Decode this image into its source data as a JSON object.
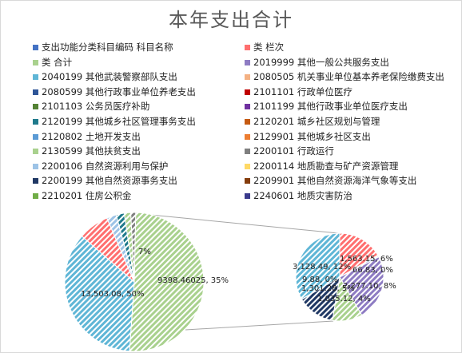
{
  "title": "本年支出合计",
  "colors": {
    "item": "#4472c4",
    "seq": "#ff6f6f",
    "total": "#a9d18e",
    "c2019999": "#8e7cc3",
    "c2040199": "#5fb6d6",
    "c2080505": "#f4b183",
    "c2080599": "#2e5597",
    "c2101101": "#c00000",
    "c2101103": "#548235",
    "c2101199": "#7030a0",
    "c2120199": "#1f7a8c",
    "c2120201": "#c55a11",
    "c2120802": "#5b9bd5",
    "c2129901": "#ed7d31",
    "c2130599": "#a9d18e",
    "c2200101": "#7f7f7f",
    "c2200106": "#9dc3e6",
    "c2200114": "#ffd966",
    "c2200199": "#203864",
    "c2209901": "#843c0c",
    "c2210201": "#70ad47",
    "c2240601": "#3a3a8c"
  },
  "legend": [
    {
      "label": "支出功能分类科目编码 科目名称",
      "color_key": "item"
    },
    {
      "label": "类 栏次",
      "color_key": "seq"
    },
    {
      "label": "类 合计",
      "color_key": "total"
    },
    {
      "label": "2019999 其他一般公共服务支出",
      "color_key": "c2019999"
    },
    {
      "label": "2040199 其他武装警察部队支出",
      "color_key": "c2040199"
    },
    {
      "label": "2080505 机关事业单位基本养老保险缴费支出",
      "color_key": "c2080505"
    },
    {
      "label": "2080599 其他行政事业单位养老支出",
      "color_key": "c2080599"
    },
    {
      "label": "2101101 行政单位医疗",
      "color_key": "c2101101"
    },
    {
      "label": "2101103 公务员医疗补助",
      "color_key": "c2101103"
    },
    {
      "label": "2101199 其他行政事业单位医疗支出",
      "color_key": "c2101199"
    },
    {
      "label": "2120199 其他城乡社区管理事务支出",
      "color_key": "c2120199"
    },
    {
      "label": "2120201 城乡社区规划与管理",
      "color_key": "c2120201"
    },
    {
      "label": "2120802 土地开发支出",
      "color_key": "c2120802"
    },
    {
      "label": "2129901 其他城乡社区支出",
      "color_key": "c2129901"
    },
    {
      "label": "2130599 其他扶贫支出",
      "color_key": "c2130599"
    },
    {
      "label": "2200101 行政运行",
      "color_key": "c2200101"
    },
    {
      "label": "2200106 自然资源利用与保护",
      "color_key": "c2200106"
    },
    {
      "label": "2200114 地质勘查与矿产资源管理",
      "color_key": "c2200114"
    },
    {
      "label": "2200199 其他自然资源事务支出",
      "color_key": "c2200199"
    },
    {
      "label": "2209901 其他自然资源海洋气象等支出",
      "color_key": "c2209901"
    },
    {
      "label": "2210201 住房公积金",
      "color_key": "c2210201"
    },
    {
      "label": "2240601 地质灾害防治",
      "color_key": "c2240601"
    }
  ],
  "chart_data": {
    "type": "pie",
    "subtype": "pie-of-pie",
    "title": "本年支出合计",
    "main_pie": [
      {
        "label": "13,503.08, 50%",
        "value": 13503.08,
        "percent": 50,
        "color_key": "total",
        "hatch": true
      },
      {
        "label": "9398.46025, 35%",
        "value": 9398.46025,
        "percent": 35,
        "color_key": "c2040199",
        "hatch": true
      },
      {
        "label": "7%",
        "value": 1890,
        "percent": 7,
        "color_key": "seq",
        "hatch": true
      },
      {
        "label": "",
        "value": 600,
        "percent": 2,
        "color_key": "c2200106",
        "hatch": true
      },
      {
        "label": "",
        "value": 500,
        "percent": 2,
        "color_key": "c2120199",
        "hatch": true
      },
      {
        "label": "",
        "value": 400,
        "percent": 2,
        "color_key": "c2130599",
        "hatch": true
      },
      {
        "label": "",
        "value": 300,
        "percent": 1,
        "color_key": "c2200101",
        "hatch": true
      }
    ],
    "secondary_pie": [
      {
        "label": "1,563.15, 6%",
        "value": 1563.15,
        "color_key": "seq",
        "hatch": true
      },
      {
        "label": "66.83, 0%",
        "value": 66.83,
        "color_key": "c2200106",
        "hatch": true
      },
      {
        "label": "2,277.10, 8%",
        "value": 2277.1,
        "color_key": "c2019999",
        "hatch": true
      },
      {
        "label": "1,035.12, 4%",
        "value": 1035.12,
        "color_key": "c2130599",
        "hatch": true
      },
      {
        "label": "1,301.28, 5%",
        "value": 1301.28,
        "color_key": "c2200199",
        "hatch": true
      },
      {
        "label": "9.88, 0%",
        "value": 9.88,
        "color_key": "c2120201",
        "hatch": true
      },
      {
        "label": "3,128.49, 12%",
        "value": 3128.49,
        "color_key": "c2040199",
        "hatch": true
      }
    ],
    "legend_position": "top"
  }
}
